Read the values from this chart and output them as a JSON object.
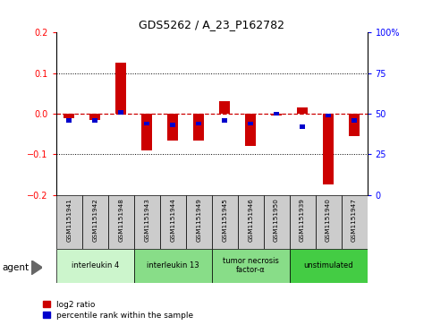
{
  "title": "GDS5262 / A_23_P162782",
  "samples": [
    "GSM1151941",
    "GSM1151942",
    "GSM1151948",
    "GSM1151943",
    "GSM1151944",
    "GSM1151949",
    "GSM1151945",
    "GSM1151946",
    "GSM1151950",
    "GSM1151939",
    "GSM1151940",
    "GSM1151947"
  ],
  "log2_ratio": [
    -0.01,
    -0.015,
    0.125,
    -0.09,
    -0.065,
    -0.065,
    0.03,
    -0.08,
    -0.005,
    0.015,
    -0.175,
    -0.055
  ],
  "percentile_rank": [
    46,
    46,
    51,
    44,
    43,
    44,
    46,
    44,
    50,
    42,
    49,
    46
  ],
  "groups": [
    {
      "label": "interleukin 4",
      "start": 0,
      "end": 3,
      "color": "#ccf5cc"
    },
    {
      "label": "interleukin 13",
      "start": 3,
      "end": 6,
      "color": "#88dd88"
    },
    {
      "label": "tumor necrosis\nfactor-α",
      "start": 6,
      "end": 9,
      "color": "#88dd88"
    },
    {
      "label": "unstimulated",
      "start": 9,
      "end": 12,
      "color": "#44cc44"
    }
  ],
  "ylim_left": [
    -0.2,
    0.2
  ],
  "ylim_right": [
    0,
    100
  ],
  "yticks_left": [
    -0.2,
    -0.1,
    0.0,
    0.1,
    0.2
  ],
  "yticks_right": [
    0,
    25,
    50,
    75,
    100
  ],
  "bar_width": 0.4,
  "red_color": "#cc0000",
  "blue_color": "#0000cc",
  "dashed_line_color": "#cc0000",
  "legend_red_label": "log2 ratio",
  "legend_blue_label": "percentile rank within the sample",
  "agent_label": "agent",
  "sample_box_color": "#cccccc",
  "fig_width": 4.83,
  "fig_height": 3.63,
  "fig_dpi": 100
}
